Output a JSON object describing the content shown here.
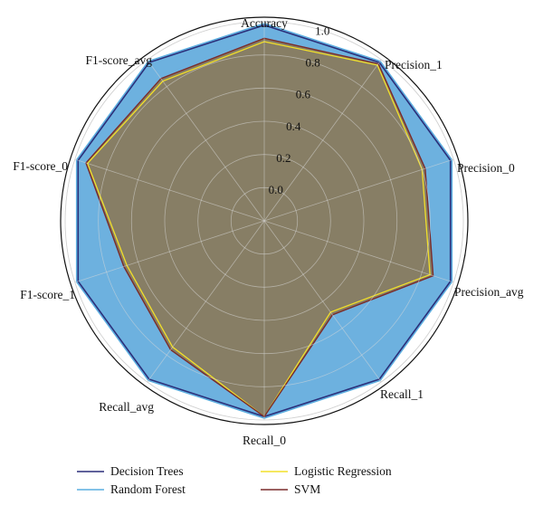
{
  "chart_data": {
    "type": "radar",
    "axes": [
      "Accuracy",
      "Precision_1",
      "Precision_0",
      "Precision_avg",
      "Recall_1",
      "Recall_0",
      "Recall_avg",
      "F1-score_1",
      "F1-score_0",
      "F1-score_avg"
    ],
    "radial_ticks": [
      "0.0",
      "0.2",
      "0.4",
      "0.6",
      "0.8",
      "1.0"
    ],
    "rlim": [
      -0.2,
      1.0
    ],
    "grid": true,
    "legend_position": "bottom",
    "series": [
      {
        "name": "Decision Trees",
        "color": "#2b2f7a",
        "values": [
          0.98,
          0.98,
          0.98,
          0.98,
          0.98,
          0.98,
          0.98,
          0.98,
          0.98,
          0.98
        ]
      },
      {
        "name": "Random Forest",
        "color": "#5aaee0",
        "fill": "#6db1df",
        "values": [
          0.99,
          0.99,
          0.99,
          0.99,
          0.99,
          0.99,
          0.99,
          0.99,
          0.99,
          0.99
        ]
      },
      {
        "name": "Logistic Regression",
        "color": "#f2e02a",
        "values": [
          0.88,
          0.96,
          0.8,
          0.85,
          0.48,
          0.98,
          0.74,
          0.67,
          0.92,
          0.84
        ]
      },
      {
        "name": "SVM",
        "color": "#7a2b2b",
        "fill": "#8a7a5a",
        "values": [
          0.9,
          0.97,
          0.82,
          0.87,
          0.5,
          0.98,
          0.76,
          0.69,
          0.93,
          0.86
        ]
      }
    ]
  }
}
